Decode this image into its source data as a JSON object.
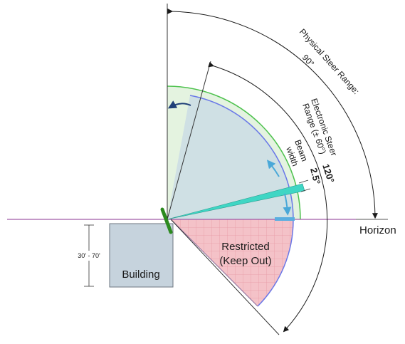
{
  "labels": {
    "physical_steer_line1": "Physical Steer Range:",
    "physical_steer_line2": "90°",
    "electronic_steer_line1": "Electronic Steer",
    "electronic_steer_line2": "Range (± 60°)",
    "electronic_steer_angle": "120°",
    "beam_line1": "Beam",
    "beam_line2": "width",
    "beam_angle": "2.5°",
    "horizon": "Horizon",
    "restricted_line1": "Restricted",
    "restricted_line2": "(Keep Out)",
    "building": "Building",
    "height_range": "30' - 70'"
  },
  "colors": {
    "horizon_line": "#a05aa8",
    "coverage_fill": "#cfe0e4",
    "physical_fill": "#e4f3e0",
    "green_arc": "#4ec24e",
    "blue_arc": "#6a78e8",
    "restricted_fill": "#f4c2c8",
    "restricted_grid": "#e89aa6",
    "beam_fill": "#3fd6c4",
    "arrow_light": "#4aa8d8",
    "arrow_dark": "#1f3f78",
    "antenna": "#2c8a1f",
    "building_fill": "#c6d3dd",
    "building_stroke": "#6c7680",
    "horizon_marker": "#5aaee0"
  }
}
